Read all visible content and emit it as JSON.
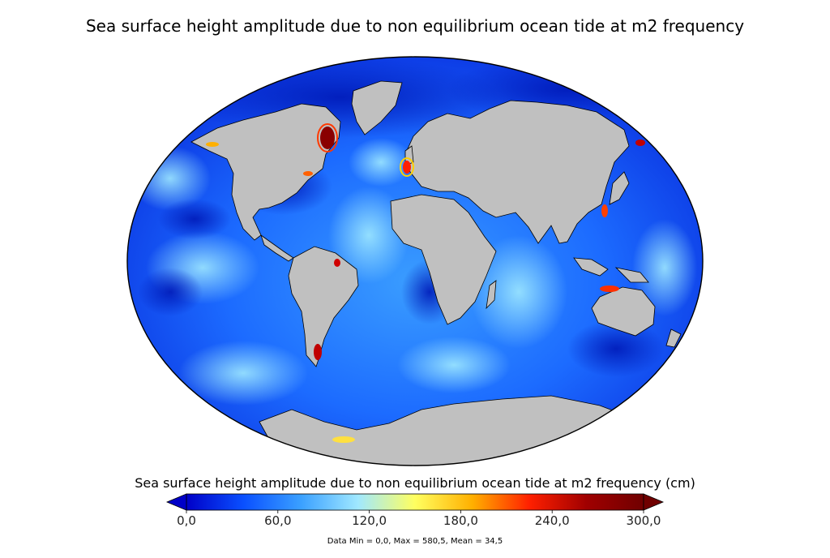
{
  "title": "Sea surface height amplitude due to non equilibrium ocean tide at m2 frequency",
  "colorbar": {
    "label": "Sea surface height amplitude due to non equilibrium ocean tide at m2 frequency (cm)",
    "min": 0,
    "max": 300,
    "ticks": [
      "0,0",
      "60,0",
      "120,0",
      "180,0",
      "240,0",
      "300,0"
    ],
    "colors": [
      "#0000c8",
      "#0a50ff",
      "#3aa0ff",
      "#a0e8ff",
      "#ffff60",
      "#ffb000",
      "#ff2000",
      "#a00000",
      "#700000"
    ],
    "extend": "both"
  },
  "stats": "Data Min = 0,0, Max = 580,5, Mean = 34,5",
  "map": {
    "projection": "world-elliptical",
    "land_color": "#c0c0c0",
    "ocean_base_color": "#1565ff"
  }
}
